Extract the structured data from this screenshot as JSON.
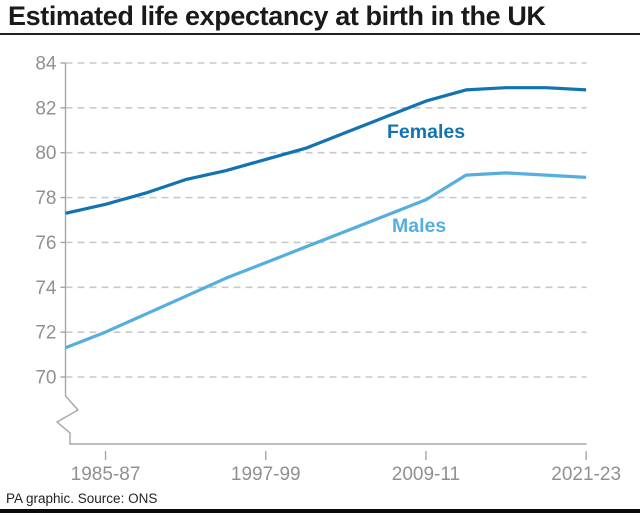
{
  "title": "Estimated life expectancy at birth in the UK",
  "footer": {
    "credit": "PA graphic. Source: ONS"
  },
  "colors": {
    "females_line": "#1173b2",
    "males_line": "#56aedf",
    "grid": "#c9c9c9",
    "axis": "#a6a6a6",
    "tick_text": "#909090",
    "title_text": "#1a1a1a",
    "footer_text": "#222222"
  },
  "chart_data": {
    "type": "line",
    "title": "Estimated life expectancy at birth in the UK",
    "xlabel": "",
    "ylabel": "",
    "ylim": [
      70,
      84
    ],
    "yticks": [
      70,
      72,
      74,
      76,
      78,
      80,
      82,
      84
    ],
    "xtick_labels": [
      "1985-87",
      "1997-99",
      "2009-11",
      "2021-23"
    ],
    "xtick_years": [
      1985,
      1997,
      2009,
      2021
    ],
    "grid": "horizontal-dashed",
    "axis_break": true,
    "legend_position": "inline-labels",
    "periods": [
      "1982-84",
      "1985-87",
      "1988-90",
      "1991-93",
      "1994-96",
      "1997-99",
      "2000-02",
      "2003-05",
      "2006-08",
      "2009-11",
      "2012-14",
      "2015-17",
      "2018-20",
      "2021-23"
    ],
    "period_start_years": [
      1982,
      1985,
      1988,
      1991,
      1994,
      1997,
      2000,
      2003,
      2006,
      2009,
      2012,
      2015,
      2018,
      2021
    ],
    "series": [
      {
        "name": "Females",
        "values": [
          77.3,
          77.7,
          78.2,
          78.8,
          79.2,
          79.7,
          80.2,
          80.9,
          81.6,
          82.3,
          82.8,
          82.9,
          82.9,
          82.8
        ]
      },
      {
        "name": "Males",
        "values": [
          71.3,
          72.0,
          72.8,
          73.6,
          74.4,
          75.1,
          75.8,
          76.5,
          77.2,
          77.9,
          79.0,
          79.1,
          79.0,
          78.9
        ]
      }
    ]
  }
}
